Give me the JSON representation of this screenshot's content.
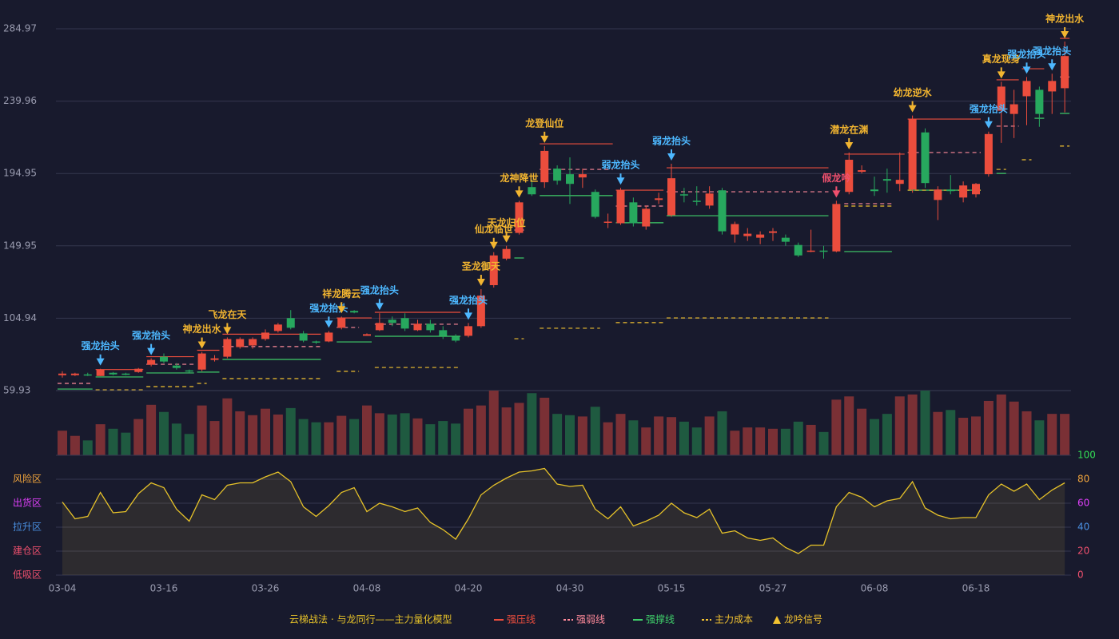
{
  "chart_data": [
    {
      "type": "candlestick",
      "categories": [
        "03-04",
        null,
        null,
        null,
        null,
        null,
        null,
        null,
        "03-16",
        null,
        null,
        null,
        null,
        null,
        null,
        null,
        "03-26",
        null,
        null,
        null,
        null,
        null,
        null,
        null,
        "04-08",
        null,
        null,
        null,
        null,
        null,
        null,
        null,
        "04-20",
        null,
        null,
        null,
        null,
        null,
        null,
        null,
        "04-30",
        null,
        null,
        null,
        null,
        null,
        null,
        null,
        "05-15",
        null,
        null,
        null,
        null,
        null,
        null,
        null,
        "05-27",
        null,
        null,
        null,
        null,
        null,
        null,
        null,
        "06-08",
        null,
        null,
        null,
        null,
        null,
        null,
        null,
        "06-18",
        null,
        null,
        null,
        null,
        null,
        null,
        null
      ],
      "open": [
        69.5,
        69.5,
        70,
        69,
        71,
        70.5,
        71.5,
        76,
        81,
        75.5,
        72.5,
        73,
        79,
        81,
        87,
        88,
        92,
        97,
        105,
        95.5,
        90.5,
        90.5,
        99,
        109.5,
        94,
        97.5,
        104,
        105,
        97.5,
        101.5,
        97.5,
        93.5,
        94,
        100,
        125.5,
        142,
        158,
        186.5,
        189.5,
        198,
        194.5,
        192.5,
        183.5,
        164.5,
        164,
        177,
        162,
        178.5,
        169,
        182,
        178,
        175,
        184.5,
        157,
        156,
        155,
        158,
        155,
        150.5,
        146.5,
        147,
        146.5,
        183.5,
        196,
        185,
        191.5,
        188.5,
        185,
        220.5,
        178.5,
        185,
        180,
        182,
        194.5,
        234,
        232,
        243,
        247,
        246,
        248
      ],
      "high": [
        72,
        71,
        71,
        73.5,
        71.5,
        71,
        74,
        80,
        83,
        77,
        73,
        84,
        82,
        93,
        93,
        93,
        98,
        102,
        110,
        97,
        91,
        97,
        106,
        110,
        95.5,
        108,
        106,
        108,
        104,
        104,
        100,
        95,
        102,
        123,
        146,
        150,
        178,
        191,
        212,
        200,
        205,
        198,
        185,
        170,
        186,
        180,
        175,
        183,
        201,
        186,
        187,
        187,
        186,
        165,
        161,
        159,
        161,
        157,
        152,
        160,
        150,
        178,
        208,
        200,
        193,
        198,
        208,
        231,
        223,
        187,
        194,
        190,
        189,
        221,
        252,
        247,
        255,
        249,
        257,
        277
      ],
      "low": [
        68,
        69,
        69,
        69,
        69.5,
        69.5,
        71,
        75,
        77,
        73,
        71,
        72,
        78,
        80,
        86,
        86,
        91,
        96,
        98,
        90,
        89,
        90,
        98,
        108,
        94,
        97,
        100,
        97,
        97,
        96,
        92,
        90,
        93,
        99,
        124,
        141,
        157,
        181,
        186,
        188,
        176,
        186,
        167,
        161,
        163,
        162,
        160,
        176,
        168,
        177,
        175,
        173,
        157,
        152,
        153,
        151,
        153,
        150,
        143,
        146,
        142,
        146,
        182,
        195,
        181,
        183,
        184,
        183,
        186,
        166,
        182,
        177,
        180,
        193,
        214,
        217,
        225,
        224,
        232,
        233
      ],
      "close": [
        70.5,
        70.5,
        69.8,
        73,
        70,
        70,
        73.5,
        79,
        78,
        74,
        72,
        83,
        80,
        92,
        92,
        92,
        96,
        101,
        99,
        91,
        90,
        96,
        105,
        108.5,
        95,
        102,
        102,
        98.5,
        101.5,
        97.5,
        94,
        91,
        100,
        119,
        144,
        148,
        177,
        182,
        209,
        190.5,
        188.5,
        194.5,
        168,
        165,
        184.5,
        164,
        173,
        179.5,
        192,
        181.5,
        177.5,
        182.5,
        159,
        163.5,
        157.5,
        157,
        159,
        152.5,
        144,
        147,
        146.5,
        176,
        203.5,
        197,
        184,
        190.5,
        191,
        229,
        189,
        185,
        184,
        187.5,
        188.5,
        219.5,
        249,
        238,
        252.5,
        232,
        252.5,
        268
      ],
      "up_color": "#eb4d3d",
      "down_color": "#27a85e",
      "ylim": [
        59.93,
        284.97
      ],
      "yticks": [
        59.93,
        104.94,
        149.95,
        194.95,
        239.96,
        284.97
      ],
      "grid": true,
      "lines": [
        {
          "name": "强压线",
          "color": "#eb4d3d",
          "dash": false,
          "segments": [
            {
              "from": 3,
              "to": 6,
              "value": 73
            },
            {
              "from": 7,
              "to": 10,
              "value": 81
            },
            {
              "from": 11,
              "to": 12,
              "value": 85
            },
            {
              "from": 13,
              "to": 20,
              "value": 95
            },
            {
              "from": 22,
              "to": 24,
              "value": 105.1
            },
            {
              "from": 25,
              "to": 31,
              "value": 108.6
            },
            {
              "from": 38,
              "to": 43,
              "value": 213.4
            },
            {
              "from": 44,
              "to": 47,
              "value": 184.6
            },
            {
              "from": 48,
              "to": 60,
              "value": 198.5
            },
            {
              "from": 62,
              "to": 66,
              "value": 207
            },
            {
              "from": 67,
              "to": 72,
              "value": 228.8
            },
            {
              "from": 74,
              "to": 75,
              "value": 253.2
            },
            {
              "from": 76,
              "to": 77,
              "value": 260.1
            },
            {
              "from": 79,
              "to": 79,
              "value": 279
            }
          ]
        },
        {
          "name": "强弱线",
          "color": "#ff8a9a",
          "dash": true,
          "segments": [
            {
              "from": 0,
              "to": 2,
              "value": 64.4
            },
            {
              "from": 7,
              "to": 10,
              "value": 76.3
            },
            {
              "from": 13,
              "to": 20,
              "value": 87.3
            },
            {
              "from": 22,
              "to": 23,
              "value": 99.2
            },
            {
              "from": 25,
              "to": 31,
              "value": 101.2
            },
            {
              "from": 36,
              "to": 36,
              "value": 159.8
            },
            {
              "from": 38,
              "to": 43,
              "value": 197.5
            },
            {
              "from": 44,
              "to": 47,
              "value": 174.7
            },
            {
              "from": 48,
              "to": 60,
              "value": 183.6
            },
            {
              "from": 62,
              "to": 65,
              "value": 176.2
            },
            {
              "from": 67,
              "to": 72,
              "value": 208
            },
            {
              "from": 74,
              "to": 75,
              "value": 224.4
            },
            {
              "from": 79,
              "to": 79,
              "value": 255
            }
          ]
        },
        {
          "name": "强撑线",
          "color": "#3fcf6a",
          "dash": false,
          "segments": [
            {
              "from": 0,
              "to": 2,
              "value": 60.9
            },
            {
              "from": 3,
              "to": 6,
              "value": 68.4
            },
            {
              "from": 7,
              "to": 10,
              "value": 70.9
            },
            {
              "from": 11,
              "to": 12,
              "value": 71.4
            },
            {
              "from": 13,
              "to": 20,
              "value": 79.3
            },
            {
              "from": 22,
              "to": 24,
              "value": 90.2
            },
            {
              "from": 25,
              "to": 31,
              "value": 93.7
            },
            {
              "from": 36,
              "to": 36,
              "value": 142.4
            },
            {
              "from": 38,
              "to": 43,
              "value": 181.2
            },
            {
              "from": 44,
              "to": 47,
              "value": 164.3
            },
            {
              "from": 48,
              "to": 60,
              "value": 168.7
            },
            {
              "from": 62,
              "to": 65,
              "value": 146.4
            },
            {
              "from": 67,
              "to": 72,
              "value": 184.6
            },
            {
              "from": 74,
              "to": 74,
              "value": 195
            },
            {
              "from": 77,
              "to": 77,
              "value": 229.3
            },
            {
              "from": 79,
              "to": 79,
              "value": 232.3
            }
          ]
        },
        {
          "name": "主力成本",
          "color": "#f2c230",
          "dash": true,
          "segments": [
            {
              "from": 3,
              "to": 6,
              "value": 60.4
            },
            {
              "from": 7,
              "to": 10,
              "value": 62.4
            },
            {
              "from": 11,
              "to": 11,
              "value": 64.4
            },
            {
              "from": 13,
              "to": 20,
              "value": 67.4
            },
            {
              "from": 22,
              "to": 23,
              "value": 71.9
            },
            {
              "from": 25,
              "to": 31,
              "value": 74.3
            },
            {
              "from": 36,
              "to": 36,
              "value": 92.2
            },
            {
              "from": 38,
              "to": 42,
              "value": 98.7
            },
            {
              "from": 44,
              "to": 47,
              "value": 102.2
            },
            {
              "from": 48,
              "to": 60,
              "value": 105.1
            },
            {
              "from": 62,
              "to": 65,
              "value": 174.7
            },
            {
              "from": 67,
              "to": 72,
              "value": 184.6
            },
            {
              "from": 74,
              "to": 74,
              "value": 197.5
            },
            {
              "from": 76,
              "to": 76,
              "value": 203.5
            },
            {
              "from": 79,
              "to": 79,
              "value": 212
            }
          ]
        }
      ],
      "signals": [
        {
          "text": "强龙抬头",
          "at": 3,
          "color": "#4db8ff"
        },
        {
          "text": "强龙抬头",
          "at": 7,
          "color": "#4db8ff"
        },
        {
          "text": "神龙出水",
          "at": 11,
          "color": "#f2b530"
        },
        {
          "text": "飞龙在天",
          "at": 13,
          "color": "#f2b530"
        },
        {
          "text": "强龙抬头",
          "at": 21,
          "color": "#4db8ff"
        },
        {
          "text": "祥龙腾云",
          "at": 22,
          "color": "#f2b530"
        },
        {
          "text": "强龙抬头",
          "at": 25,
          "color": "#4db8ff"
        },
        {
          "text": "强龙抬头",
          "at": 32,
          "color": "#4db8ff"
        },
        {
          "text": "圣龙御天",
          "at": 33,
          "color": "#f2b530"
        },
        {
          "text": "仙龙临世",
          "at": 34,
          "color": "#f2b530"
        },
        {
          "text": "天龙归位",
          "at": 35,
          "color": "#f2b530"
        },
        {
          "text": "龙神降世",
          "at": 36,
          "color": "#f2b530"
        },
        {
          "text": "龙登仙位",
          "at": 38,
          "color": "#f2b530"
        },
        {
          "text": "弱龙抬头",
          "at": 44,
          "color": "#4db8ff"
        },
        {
          "text": "弱龙抬头",
          "at": 48,
          "color": "#4db8ff"
        },
        {
          "text": "假龙吟",
          "at": 61,
          "color": "#f0506e"
        },
        {
          "text": "潜龙在渊",
          "at": 62,
          "color": "#f2b530"
        },
        {
          "text": "幼龙逆水",
          "at": 67,
          "color": "#f2b530"
        },
        {
          "text": "强龙抬头",
          "at": 73,
          "color": "#4db8ff"
        },
        {
          "text": "真龙现身",
          "at": 74,
          "color": "#f2b530"
        },
        {
          "text": "强龙抬头",
          "at": 76,
          "color": "#4db8ff"
        },
        {
          "text": "强龙抬头",
          "at": 78,
          "color": "#4db8ff"
        },
        {
          "text": "神龙出水",
          "at": 79,
          "color": "#f2b530"
        }
      ]
    },
    {
      "type": "bar",
      "ylim": [
        0,
        100
      ],
      "up_color": "#7a3035",
      "down_color": "#1f5a40",
      "values": [
        38,
        30,
        23,
        48,
        41,
        35,
        56,
        78,
        67,
        49,
        33,
        77,
        53,
        88,
        68,
        62,
        72,
        63,
        73,
        56,
        51,
        51,
        61,
        56,
        77,
        65,
        63,
        65,
        57,
        48,
        53,
        49,
        72,
        77,
        100,
        74,
        81,
        96,
        89,
        64,
        62,
        60,
        75,
        51,
        64,
        54,
        43,
        60,
        59,
        52,
        43,
        60,
        68,
        38,
        43,
        43,
        41,
        41,
        52,
        47,
        36,
        86,
        91,
        72,
        56,
        64,
        91,
        94,
        100,
        67,
        70,
        58,
        60,
        84,
        94,
        83,
        68,
        54,
        64,
        64
      ]
    },
    {
      "type": "area",
      "color": "#e6c229",
      "ylim": [
        0,
        100
      ],
      "yticks": [
        0,
        20,
        40,
        60,
        80,
        100
      ],
      "ytick_colors": [
        "#f0506e",
        "#f0506e",
        "#4a90e2",
        "#e040fb",
        "#f2a53c",
        "#33dd55"
      ],
      "zones": [
        {
          "label": "风险区",
          "value": 80,
          "color": "#f2a53c"
        },
        {
          "label": "出货区",
          "value": 60,
          "color": "#e040fb"
        },
        {
          "label": "拉升区",
          "value": 40,
          "color": "#4a90e2"
        },
        {
          "label": "建仓区",
          "value": 20,
          "color": "#f0506e"
        },
        {
          "label": "低吸区",
          "value": 0,
          "color": "#f0506e"
        }
      ],
      "values": [
        61,
        47,
        49,
        69,
        52,
        53,
        68,
        77,
        73,
        55,
        45,
        67,
        63,
        75,
        77,
        77,
        82,
        86,
        78,
        57,
        49,
        58,
        69,
        73,
        53,
        60,
        57,
        53,
        56,
        44,
        38,
        30,
        47,
        67,
        75,
        81,
        86,
        87,
        89,
        76,
        74,
        75,
        55,
        47,
        57,
        41,
        45,
        50,
        60,
        52,
        48,
        55,
        35,
        37,
        31,
        29,
        31,
        23,
        18,
        25,
        25,
        57,
        69,
        65,
        57,
        62,
        64,
        78,
        56,
        50,
        47,
        48,
        48,
        67,
        76,
        70,
        76,
        63,
        71,
        77
      ]
    }
  ],
  "legend": {
    "title": "云梯战法 · 与龙同行——主力量化模型",
    "signal": "龙吟信号",
    "signal_color": "#f2c230"
  }
}
